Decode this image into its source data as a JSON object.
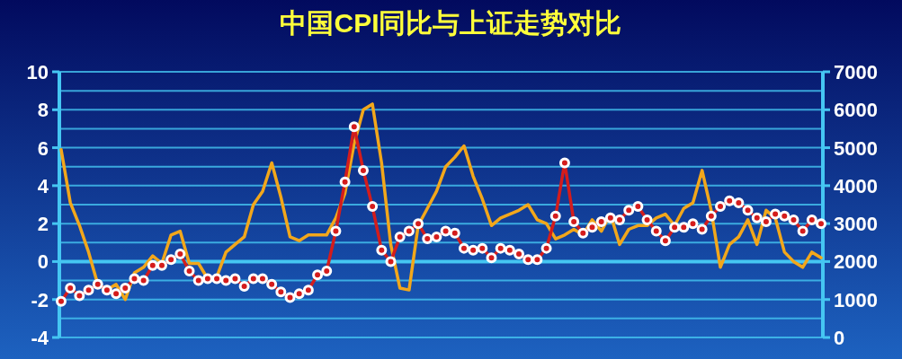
{
  "chart_data": {
    "type": "line",
    "title": "中国CPI同比与上证走势对比",
    "categories": [
      null,
      null,
      null,
      null,
      null,
      null,
      null,
      null,
      null,
      null,
      null,
      null,
      null,
      null,
      null,
      null,
      null,
      null,
      null,
      null,
      null,
      null,
      null,
      null,
      null,
      null,
      null,
      null,
      null,
      null,
      null,
      null,
      null,
      null,
      null,
      null,
      null,
      null,
      null,
      null,
      null,
      null,
      null,
      null,
      null,
      null,
      null,
      null,
      null,
      null,
      null,
      null,
      null,
      null,
      null,
      null,
      null,
      null,
      null,
      null,
      null,
      null,
      null,
      null,
      null,
      null,
      null,
      null,
      null,
      null,
      null,
      null,
      null,
      null,
      null,
      null,
      null,
      null,
      null,
      null,
      null,
      null,
      null,
      null
    ],
    "ylim": [
      -4,
      10
    ],
    "yticks": [
      -4,
      {
        "value": -3,
        "label": null
      },
      -2,
      {
        "value": -1,
        "label": null
      },
      0,
      {
        "value": 1,
        "label": null
      },
      2,
      {
        "value": 3,
        "label": null
      },
      4,
      {
        "value": 5,
        "label": null
      },
      6,
      {
        "value": 7,
        "label": null
      },
      8,
      {
        "value": 9,
        "label": null
      },
      10
    ],
    "y2lim": [
      0,
      7000
    ],
    "y2ticks": [
      0,
      1000,
      2000,
      3000,
      4000,
      5000,
      6000,
      7000
    ],
    "grid": "y",
    "ref_lines": [
      {
        "axis": "y",
        "value": 0,
        "color": "#45c6f2"
      }
    ],
    "series": [
      {
        "color": "#d41c1c",
        "marker": "circle",
        "values": [
          -2.1,
          -1.4,
          -1.8,
          -1.5,
          -1.2,
          -1.5,
          -1.7,
          -1.4,
          -0.9,
          -1.0,
          -0.2,
          -0.2,
          0.1,
          0.4,
          -0.5,
          -1.0,
          -0.9,
          -0.9,
          -1.0,
          -0.9,
          -1.3,
          -0.9,
          -0.9,
          -1.2,
          -1.6,
          -1.9,
          -1.7,
          -1.5,
          -0.7,
          -0.5,
          1.6,
          4.2,
          7.1,
          4.8,
          2.9,
          0.6,
          0.0,
          1.3,
          1.6,
          2.0,
          1.2,
          1.3,
          1.6,
          1.5,
          0.7,
          0.6,
          0.7,
          0.2,
          0.7,
          0.6,
          0.4,
          0.1,
          0.1,
          0.7,
          2.4,
          5.2,
          2.1,
          1.5,
          1.8,
          2.1,
          2.3,
          2.2,
          2.7,
          2.9,
          2.2,
          1.6,
          1.1,
          1.8,
          1.8,
          2.0,
          1.7,
          2.4,
          2.9,
          3.2,
          3.1,
          2.7,
          2.3,
          2.1,
          2.5,
          2.4,
          2.2,
          1.6,
          2.2,
          2.0
        ]
      },
      {
        "color": "#f2a71b",
        "axis": "y2",
        "marker": "none",
        "values": [
          4950,
          3550,
          2950,
          2250,
          1400,
          1250,
          1400,
          1000,
          1700,
          1850,
          2150,
          1950,
          2700,
          2800,
          1950,
          1950,
          1550,
          1600,
          2250,
          2450,
          2650,
          3500,
          3850,
          4600,
          3700,
          2650,
          2550,
          2700,
          2700,
          2700,
          3150,
          3800,
          5100,
          6000,
          6150,
          4600,
          2450,
          1300,
          1250,
          2950,
          3400,
          3850,
          4500,
          4750,
          5050,
          4250,
          3650,
          2950,
          3150,
          3250,
          3350,
          3500,
          3100,
          3000,
          2600,
          2700,
          2850,
          2700,
          3100,
          2800,
          3250,
          2450,
          2850,
          2950,
          2950,
          3150,
          3250,
          2950,
          3400,
          3550,
          4400,
          3350,
          1850,
          2450,
          2650,
          3100,
          2450,
          3350,
          3150,
          2250,
          2000,
          1850,
          2250,
          2100
        ]
      }
    ]
  }
}
